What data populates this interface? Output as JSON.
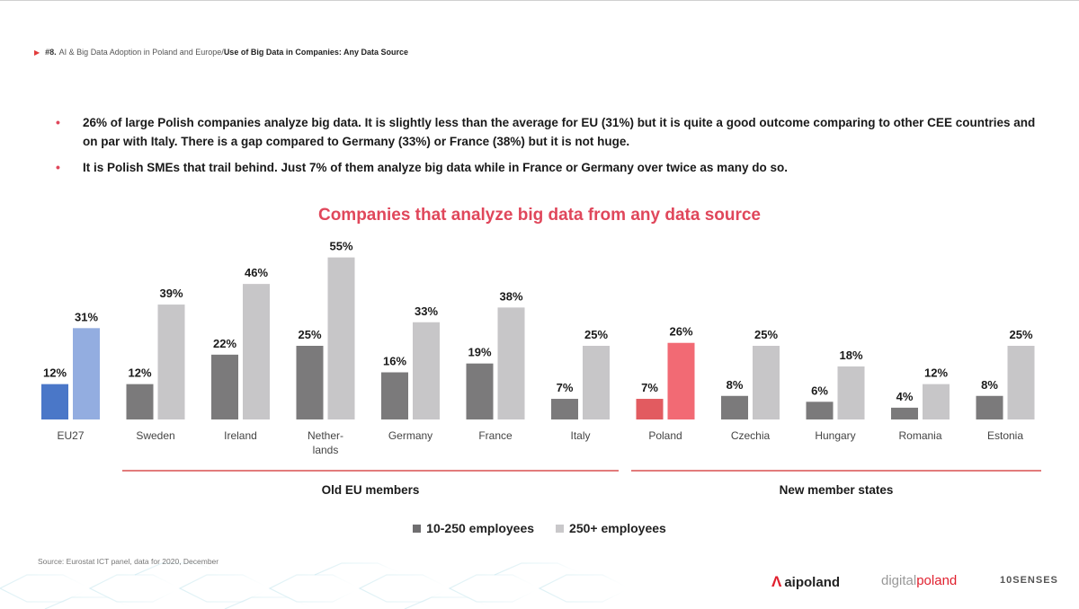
{
  "breadcrumb": {
    "number": "#8.",
    "section": "AI & Big Data Adoption in Poland and Europe/",
    "page": "Use of Big Data in Companies: Any Data Source"
  },
  "bullets": [
    "26% of large Polish companies analyze big data. It is slightly less than the average for EU (31%) but it is quite a good outcome comparing to other CEE countries and on par with Italy. There is a gap compared to Germany (33%) or France (38%) but it is not huge.",
    "It is Polish SMEs that trail behind. Just 7% of them analyze big data while in France or Germany over twice as many do so."
  ],
  "chart_data": {
    "type": "bar",
    "title": "Companies that analyze big data from any data source",
    "categories": [
      "EU27",
      "Sweden",
      "Ireland",
      "Nether-\nlands",
      "Germany",
      "France",
      "Italy",
      "Poland",
      "Czechia",
      "Hungary",
      "Romania",
      "Estonia"
    ],
    "series": [
      {
        "name": "10-250 employees",
        "values": [
          12,
          12,
          22,
          25,
          16,
          19,
          7,
          7,
          8,
          6,
          4,
          8
        ]
      },
      {
        "name": "250+ employees",
        "values": [
          31,
          39,
          46,
          55,
          33,
          38,
          25,
          26,
          25,
          18,
          12,
          25
        ]
      }
    ],
    "value_labels": {
      "small": [
        "12%",
        "12%",
        "22%",
        "25%",
        "16%",
        "19%",
        "7%",
        "7%",
        "8%",
        "6%",
        "4%",
        "8%"
      ],
      "large": [
        "31%",
        "39%",
        "46%",
        "55%",
        "33%",
        "38%",
        "25%",
        "26%",
        "25%",
        "18%",
        "12%",
        "25%"
      ]
    },
    "ylim": [
      0,
      60
    ],
    "grid": false,
    "legend_position": "bottom-center",
    "groups": [
      {
        "label": "Old EU members",
        "from": 1,
        "to": 6
      },
      {
        "label": "New member states",
        "from": 7,
        "to": 11
      }
    ],
    "colors": {
      "small_default": "#7b7a7b",
      "large_default": "#c7c6c8",
      "small_eu": "#4a77c8",
      "large_eu": "#93ade0",
      "small_poland": "#e25b60",
      "large_poland": "#f26a74"
    },
    "highlight": {
      "EU27": "blue",
      "Poland": "red"
    }
  },
  "legend": {
    "small_label": "10-250 employees",
    "large_label": "250+ employees",
    "small_color": "#6f6e70",
    "large_color": "#c9c8ca"
  },
  "source": "Source: Eurostat ICT panel, data for 2020, December",
  "logos": {
    "aipoland_mark": "Λ",
    "aipoland_text": "aipoland",
    "digital": "digital",
    "poland": "poland",
    "tensenses": "10SENSES"
  },
  "colors": {
    "accent_red": "#e0475b",
    "group_line": "#e27b7b"
  }
}
